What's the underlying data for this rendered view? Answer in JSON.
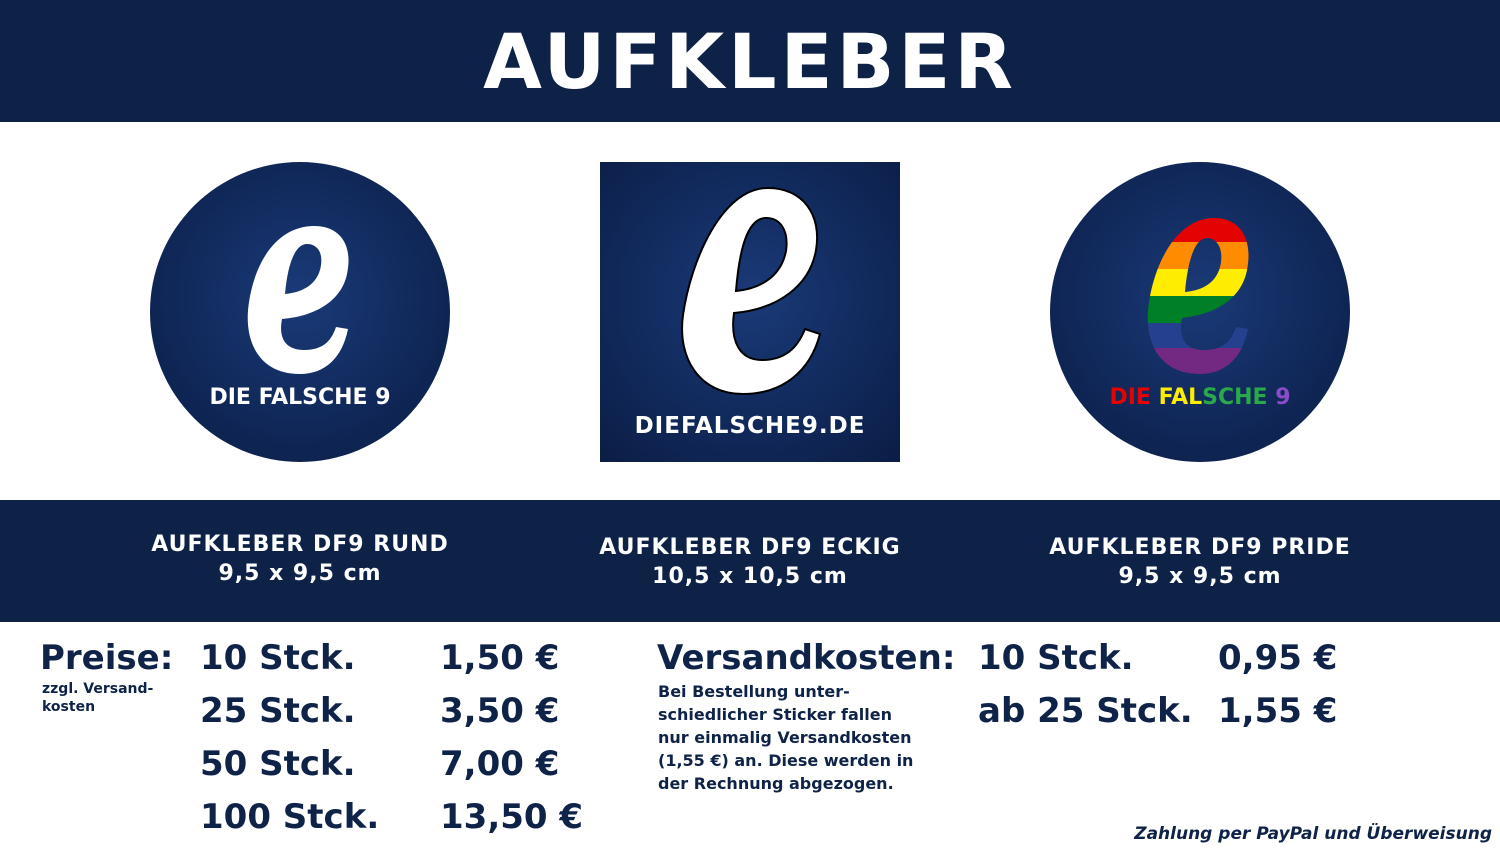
{
  "header": {
    "title": "AUFKLEBER"
  },
  "stickers": [
    {
      "text": "DIE FALSCHE 9"
    },
    {
      "text": "DIEFALSCHE9.DE"
    },
    {
      "text_parts": [
        "DIE ",
        "FAL",
        "SCHE",
        " 9"
      ]
    }
  ],
  "products": [
    {
      "name": "AUFKLEBER DF9 RUND",
      "size": "9,5 x 9,5 cm"
    },
    {
      "name": "AUFKLEBER DF9 ECKIG",
      "size": "10,5 x 10,5 cm"
    },
    {
      "name": "AUFKLEBER DF9 PRIDE",
      "size": "9,5 x 9,5 cm"
    }
  ],
  "prices": {
    "label": "Preise:",
    "note_line1": "zzgl. Versand-",
    "note_line2": "kosten",
    "rows": [
      {
        "qty": "10 Stck.",
        "price": "1,50 €"
      },
      {
        "qty": "25 Stck.",
        "price": "3,50 €"
      },
      {
        "qty": "50 Stck.",
        "price": "7,00 €"
      },
      {
        "qty": "100 Stck.",
        "price": "13,50 €"
      }
    ]
  },
  "shipping": {
    "label": "Versandkosten:",
    "note_lines": [
      "Bei Bestellung unter-",
      "schiedlicher Sticker fallen",
      "nur einmalig Versandkosten",
      "(1,55 €) an. Diese werden in",
      "der Rechnung abgezogen."
    ],
    "rows": [
      {
        "qty": "10 Stck.",
        "price": "0,95 €"
      },
      {
        "qty": "ab 25 Stck.",
        "price": "1,55 €"
      }
    ]
  },
  "payment": "Zahlung per PayPal und Überweisung",
  "colors": {
    "navy": "#0e2248",
    "white": "#ffffff"
  }
}
